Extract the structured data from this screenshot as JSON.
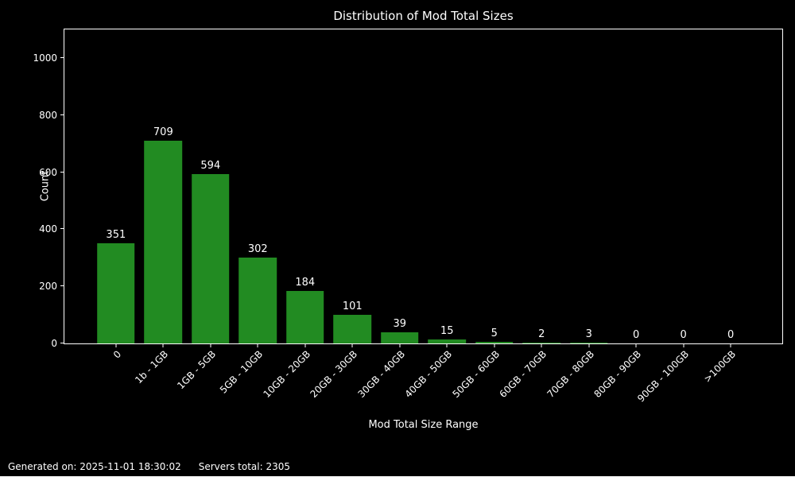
{
  "chart_data": {
    "type": "bar",
    "title": "Distribution of Mod Total Sizes",
    "xlabel": "Mod Total Size Range",
    "ylabel": "Count",
    "categories": [
      "0",
      "1b - 1GB",
      "1GB - 5GB",
      "5GB - 10GB",
      "10GB - 20GB",
      "20GB - 30GB",
      "30GB - 40GB",
      "40GB - 50GB",
      "50GB - 60GB",
      "60GB - 70GB",
      "70GB - 80GB",
      "80GB - 90GB",
      "90GB - 100GB",
      ">100GB"
    ],
    "values": [
      351,
      709,
      594,
      302,
      184,
      101,
      39,
      15,
      5,
      2,
      3,
      0,
      0,
      0
    ],
    "ylim": [
      0,
      1100
    ],
    "yticks": [
      0,
      200,
      400,
      600,
      800,
      1000
    ],
    "bar_width_fraction": 0.8,
    "grid": false,
    "legend": null,
    "colors": {
      "background": "#000000",
      "text": "#ffffff",
      "axis": "#ffffff",
      "bar": "#228B22"
    }
  },
  "footer": {
    "generated": "Generated on: 2025-11-01 18:30:02",
    "servers_total": "Servers total: 2305"
  }
}
